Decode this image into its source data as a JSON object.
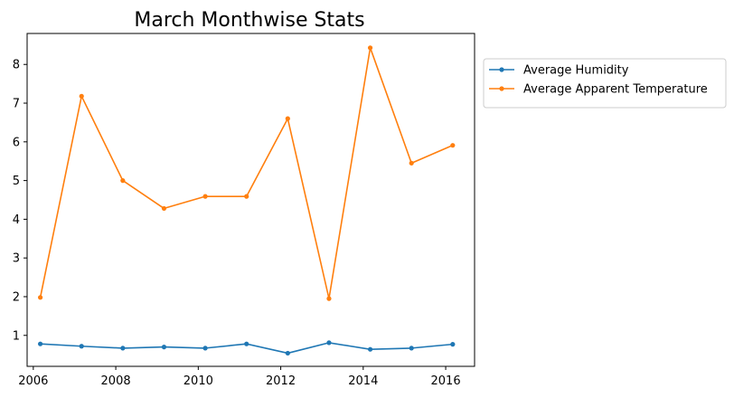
{
  "chart_data": {
    "type": "line",
    "title": "March Monthwise Stats",
    "xlabel": "",
    "ylabel": "",
    "xlim": [
      2005.85,
      2016.7
    ],
    "ylim": [
      0.2,
      8.8
    ],
    "x_ticks": [
      2006,
      2008,
      2010,
      2012,
      2014,
      2016
    ],
    "y_ticks": [
      1,
      2,
      3,
      4,
      5,
      6,
      7,
      8
    ],
    "grid": false,
    "legend_position": "upper right, outside plot",
    "x": [
      2006.17,
      2007.17,
      2008.17,
      2009.17,
      2010.17,
      2011.17,
      2012.17,
      2013.17,
      2014.17,
      2015.17,
      2016.17
    ],
    "series": [
      {
        "name": "Average Humidity",
        "color": "#1f77b4",
        "values": [
          0.78,
          0.72,
          0.67,
          0.7,
          0.67,
          0.78,
          0.54,
          0.81,
          0.64,
          0.67,
          0.77
        ]
      },
      {
        "name": "Average Apparent Temperature",
        "color": "#ff7f0e",
        "values": [
          1.98,
          7.18,
          5.0,
          4.28,
          4.59,
          4.59,
          6.6,
          1.95,
          8.43,
          5.45,
          5.91
        ]
      }
    ]
  }
}
